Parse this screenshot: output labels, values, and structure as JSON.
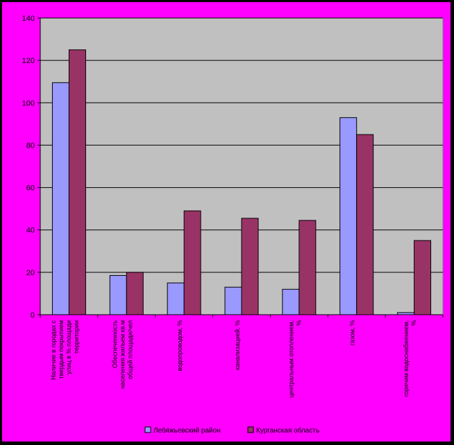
{
  "colors": {
    "outer_background": "#ff00ff",
    "plot_background": "#c0c0c0",
    "series_1": "#9999ff",
    "series_2": "#993366",
    "gridline": "#000000"
  },
  "chart_data": {
    "type": "bar",
    "title": "",
    "xlabel": "",
    "ylabel": "",
    "ylim": [
      0,
      140
    ],
    "yticks": [
      0,
      20,
      40,
      60,
      80,
      100,
      120,
      140
    ],
    "grid": true,
    "legend_position": "bottom",
    "categories": [
      [
        "Наличие в городах с",
        "твердым покрытием",
        "улиц в % площади",
        "территории"
      ],
      [
        "Обеспеченность",
        "населения жильем кв.м",
        "общей площади/чел"
      ],
      [
        "водопроводом, %"
      ],
      [
        "канализацией, %"
      ],
      [
        "центральным отоплением,",
        "%"
      ],
      [
        "газом, %"
      ],
      [
        "горячим водоснабжением,",
        "%"
      ]
    ],
    "series": [
      {
        "name": "Лебяжьевский район",
        "values": [
          109.5,
          18.5,
          15,
          13,
          12,
          93,
          1
        ]
      },
      {
        "name": "Курганская область",
        "values": [
          125,
          20,
          49,
          45.5,
          44.5,
          85,
          35
        ]
      }
    ]
  }
}
